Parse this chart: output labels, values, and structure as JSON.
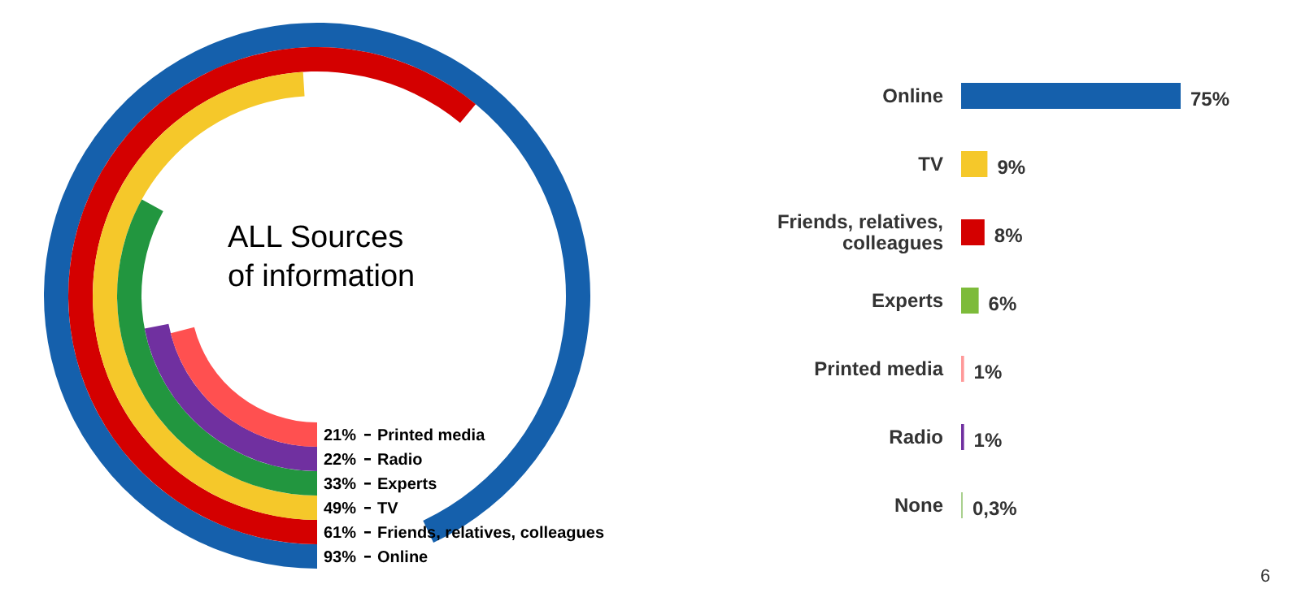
{
  "chart_data": [
    {
      "type": "other",
      "title": "ALL Sources of information",
      "categories": [
        "Online",
        "Friends, relatives, colleagues",
        "TV",
        "Experts",
        "Radio",
        "Printed media"
      ],
      "values": [
        93,
        61,
        49,
        33,
        22,
        21
      ],
      "value_labels": [
        "93%",
        "61%",
        "49%",
        "33%",
        "22%",
        "21%"
      ],
      "colors": [
        "#1560ac",
        "#d40000",
        "#f5c82a",
        "#22963f",
        "#7030a0",
        "#ff5050"
      ]
    },
    {
      "type": "bar",
      "orientation": "horizontal",
      "categories": [
        "Online",
        "TV",
        "Friends, relatives, colleagues",
        "Experts",
        "Printed media",
        "Radio",
        "None"
      ],
      "values": [
        75,
        9,
        8,
        6,
        1,
        1,
        0.3
      ],
      "value_labels": [
        "75%",
        "9%",
        "8%",
        "6%",
        "1%",
        "1%",
        "0,3%"
      ],
      "colors": [
        "#1560ac",
        "#f5c82a",
        "#d40000",
        "#7dbb3a",
        "#ff9999",
        "#7030a0",
        "#a9d08e"
      ],
      "annotations": [
        "6"
      ]
    }
  ]
}
